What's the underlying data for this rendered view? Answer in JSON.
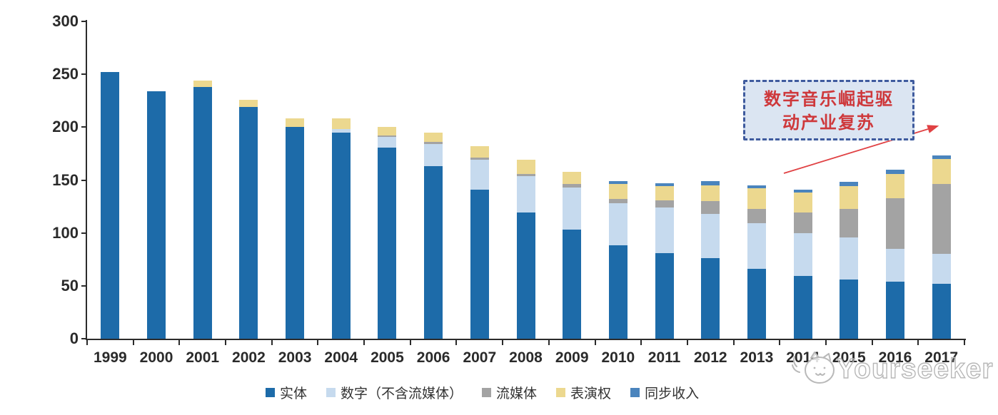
{
  "chart_data": {
    "type": "bar",
    "stacked": true,
    "categories": [
      "1999",
      "2000",
      "2001",
      "2002",
      "2003",
      "2004",
      "2005",
      "2006",
      "2007",
      "2008",
      "2009",
      "2010",
      "2011",
      "2012",
      "2013",
      "2014",
      "2015",
      "2016",
      "2017"
    ],
    "series": [
      {
        "key": "physical",
        "name": "实体",
        "color": "#1d6ba9",
        "values": [
          252,
          234,
          238,
          219,
          200,
          195,
          181,
          163,
          141,
          119,
          103,
          88,
          81,
          76,
          66,
          59,
          56,
          54,
          52
        ]
      },
      {
        "key": "digital-excl-streaming",
        "name": "数字（不含流媒体）",
        "color": "#c6daee",
        "values": [
          0,
          0,
          0,
          0,
          0,
          3,
          10,
          21,
          28,
          35,
          40,
          40,
          43,
          42,
          43,
          41,
          40,
          31,
          28
        ]
      },
      {
        "key": "streaming",
        "name": "流媒体",
        "color": "#a3a3a3",
        "values": [
          0,
          0,
          0,
          0,
          0,
          0,
          1,
          2,
          2,
          2,
          3,
          4,
          7,
          12,
          14,
          19,
          27,
          48,
          66
        ]
      },
      {
        "key": "performance-rights",
        "name": "表演权",
        "color": "#ecd88f",
        "values": [
          0,
          0,
          6,
          7,
          8,
          10,
          8,
          9,
          11,
          13,
          12,
          14,
          13,
          15,
          19,
          19,
          21,
          23,
          24
        ]
      },
      {
        "key": "sync-revenue",
        "name": "同步收入",
        "color": "#4a84bd",
        "values": [
          0,
          0,
          0,
          0,
          0,
          0,
          0,
          0,
          0,
          0,
          0,
          3,
          3,
          4,
          3,
          3,
          4,
          4,
          3
        ]
      }
    ],
    "ylim": [
      0,
      300
    ],
    "y_ticks": [
      0,
      50,
      100,
      150,
      200,
      250,
      300
    ],
    "grid": false,
    "legend_position": "bottom",
    "title": "",
    "xlabel": "",
    "ylabel": ""
  },
  "annotation": {
    "line1": "数字音乐崛起驱",
    "line2": "动产业复苏",
    "arrow_color": "#e04143",
    "box_fill": "#dbe5f2",
    "box_border": "#3f5b9e",
    "text_color": "#ce383b"
  },
  "watermark": {
    "text": "Yourseeker",
    "logo": "cat-mascot-icon"
  }
}
